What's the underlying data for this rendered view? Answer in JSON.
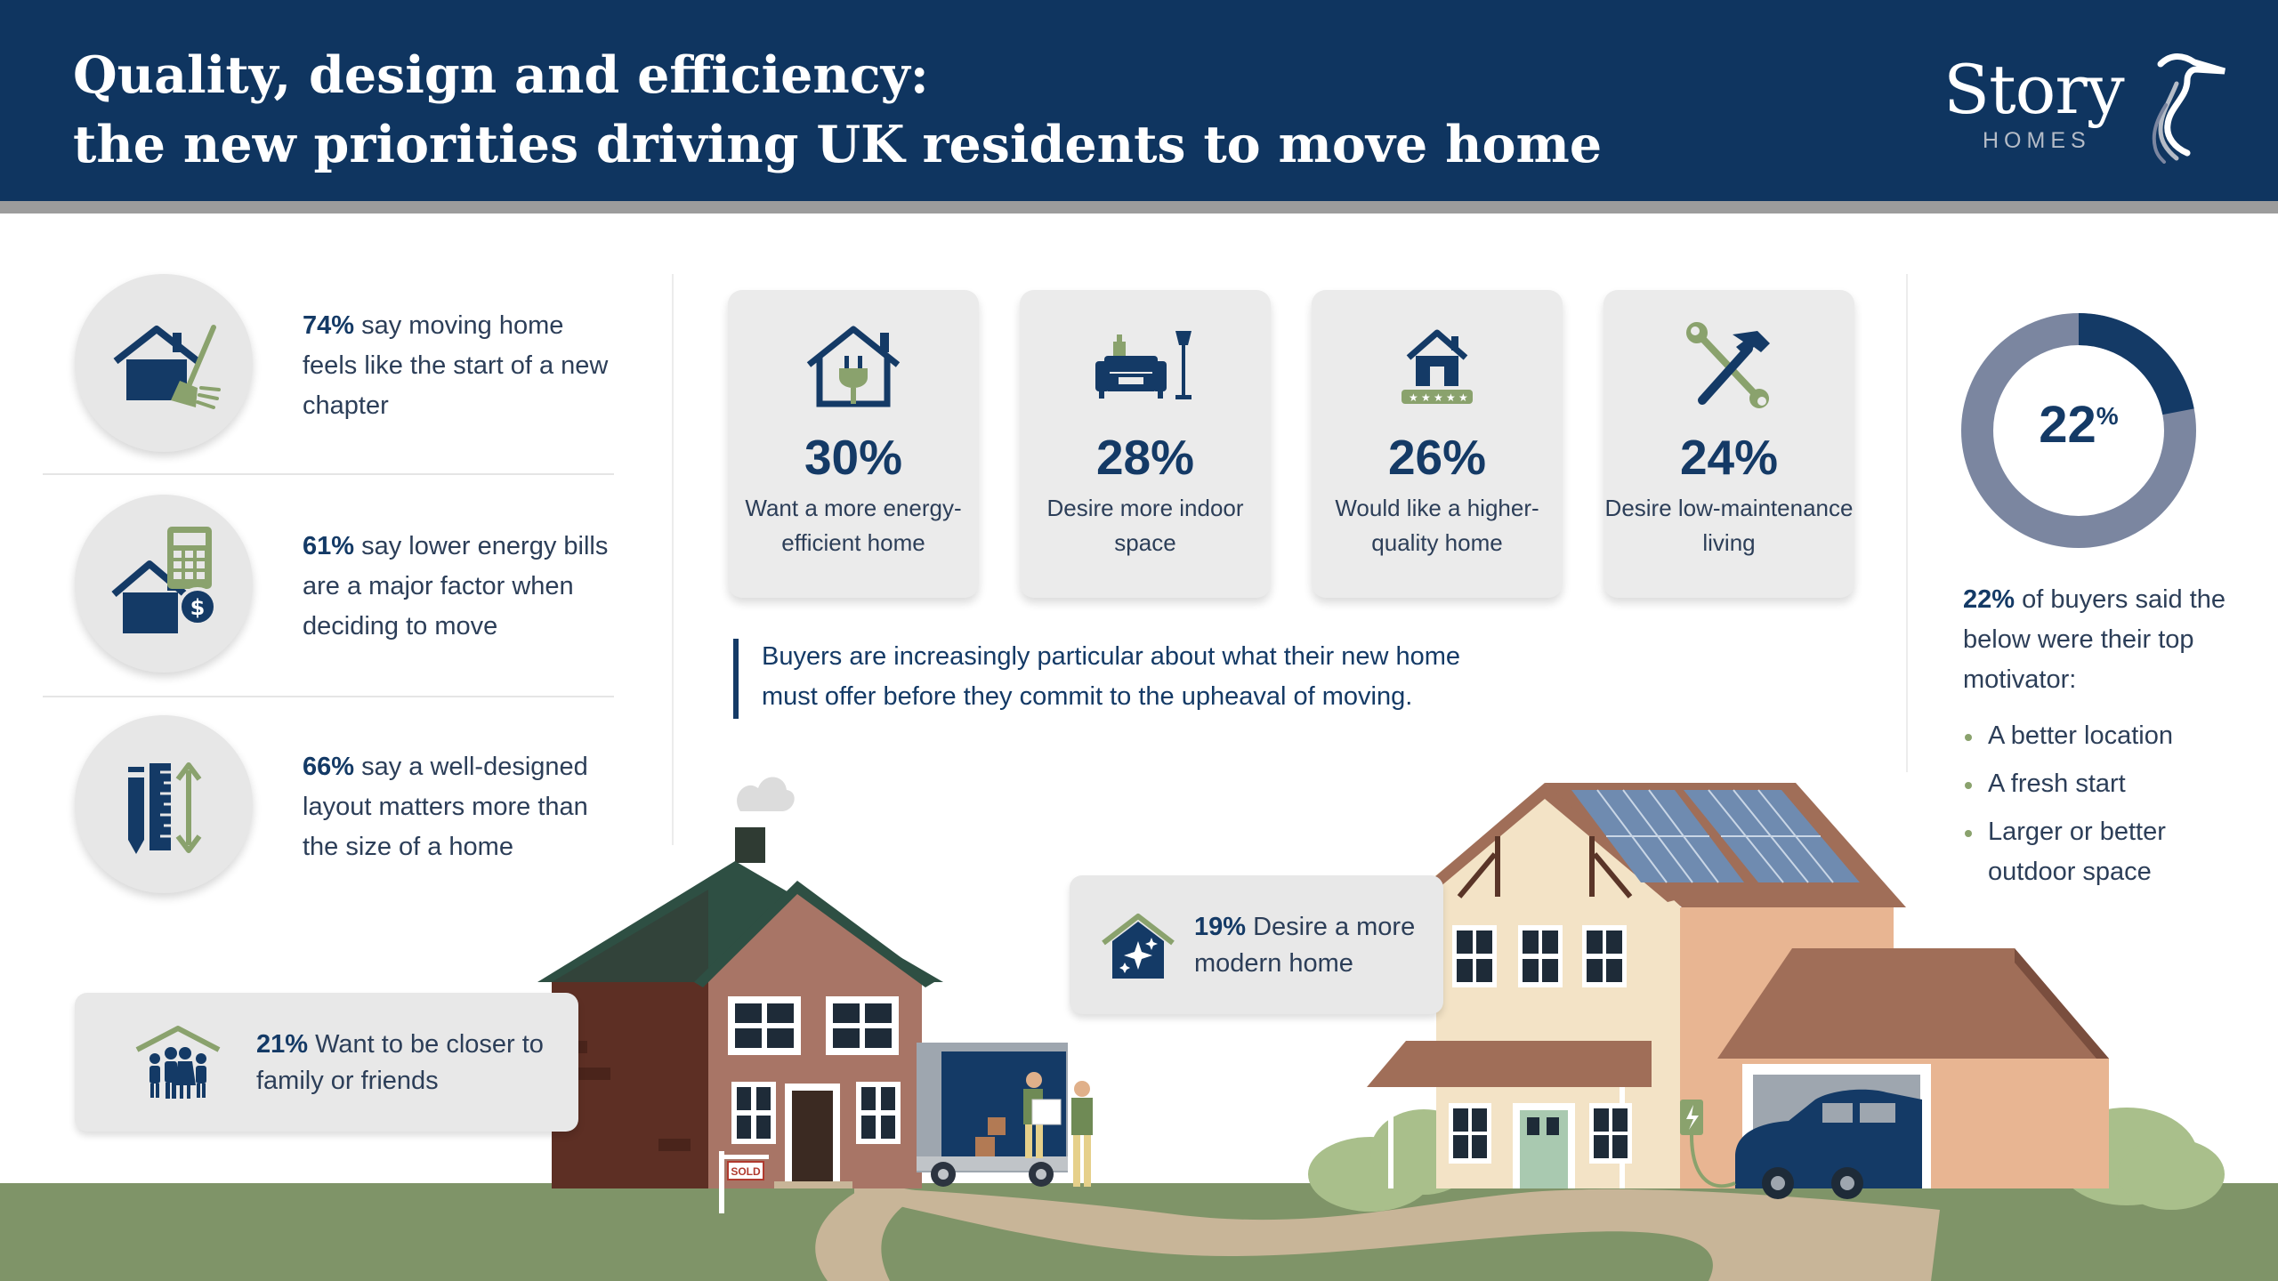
{
  "header": {
    "title_line1": "Quality, design and efficiency:",
    "title_line2": "the new priorities driving UK residents to move home",
    "logo_text": "Story",
    "logo_subtext": "HOMES"
  },
  "left_stats": [
    {
      "percent": "74%",
      "text": " say moving home feels like the start of a new chapter",
      "icon": "house-broom-icon"
    },
    {
      "percent": "61%",
      "text": " say lower energy bills are a major factor when deciding to move",
      "icon": "house-calculator-icon"
    },
    {
      "percent": "66%",
      "text": " say a well-designed layout matters more than the size of a home",
      "icon": "ruler-pencil-icon"
    }
  ],
  "stat_cards": [
    {
      "value": "30%",
      "label": "Want a more energy-efficient home",
      "icon": "house-plug-icon"
    },
    {
      "value": "28%",
      "label": "Desire more indoor space",
      "icon": "sofa-lamp-icon"
    },
    {
      "value": "26%",
      "label": "Would like a higher-quality home",
      "icon": "house-stars-icon"
    },
    {
      "value": "24%",
      "label": "Desire low-maintenance living",
      "icon": "hammer-wrench-icon"
    }
  ],
  "quote": "Buyers are increasingly particular about what their new home must offer before they commit to the upheaval of moving.",
  "donut": {
    "value": "22",
    "unit": "%",
    "fraction": 0.22,
    "filled_color": "#143a66",
    "remaining_color": "#7b86a0"
  },
  "motivators": {
    "percent": "22%",
    "intro": " of buyers said the below were their top motivator:",
    "items": [
      "A better location",
      "A fresh start",
      "Larger or better outdoor space"
    ]
  },
  "callouts": {
    "family": {
      "percent": "21%",
      "text": " Want to be closer to family or friends",
      "icon": "family-house-icon"
    },
    "modern": {
      "percent": "19%",
      "text": " Desire a more modern home",
      "icon": "house-sparkle-icon"
    }
  },
  "sold_sign": "SOLD",
  "colors": {
    "navy": "#0f3560",
    "accent_green": "#8aa26d",
    "ground": "#7f9468",
    "card_bg": "#ebebeb"
  }
}
